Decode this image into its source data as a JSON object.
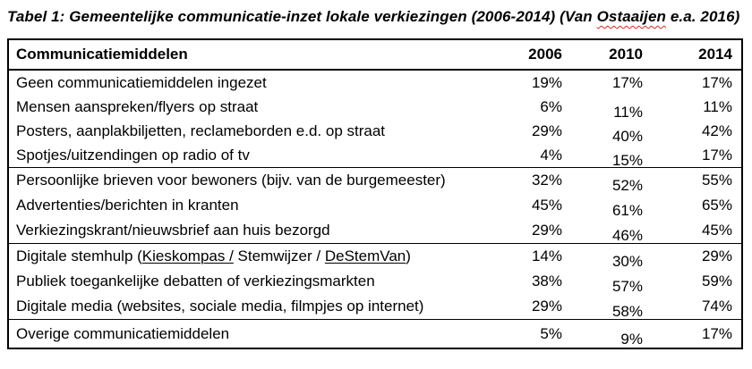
{
  "title": {
    "prefix": "Tabel 1: Gemeentelijke communicatie-inzet lokale verkiezingen (2006-2014) (Van ",
    "spellcheck_word": "Ostaaijen",
    "suffix": " e.a. 2016)"
  },
  "colors": {
    "text": "#000000",
    "border": "#000000",
    "spellcheck_red": "#E0261C",
    "hyperlink_blue": "#2F6FC1"
  },
  "chart_data": {
    "type": "table",
    "title": "Tabel 1: Gemeentelijke communicatie-inzet lokale verkiezingen (2006-2014) (Van Ostaaijen e.a. 2016)",
    "columns": [
      "Communicatiemiddelen",
      "2006",
      "2010",
      "2014"
    ],
    "rows": [
      [
        "Geen communicatiemiddelen ingezet",
        "19%",
        "17%",
        "17%"
      ],
      [
        "Mensen aanspreken/flyers op straat",
        "6%",
        "11%",
        "11%"
      ],
      [
        "Posters, aanplakbiljetten, reclameborden e.d. op straat",
        "29%",
        "40%",
        "42%"
      ],
      [
        "Spotjes/uitzendingen op radio of tv",
        "4%",
        "15%",
        "17%"
      ],
      [
        "Persoonlijke brieven voor bewoners (bijv. van de burgemeester)",
        "32%",
        "52%",
        "55%"
      ],
      [
        "Advertenties/berichten in kranten",
        "45%",
        "61%",
        "65%"
      ],
      [
        "Verkiezingskrant/nieuwsbrief aan huis bezorgd",
        "29%",
        "46%",
        "45%"
      ],
      [
        "Digitale stemhulp (Kieskompas / Stemwijzer / DeStemVan)",
        "14%",
        "30%",
        "29%"
      ],
      [
        "Publiek toegankelijke debatten of verkiezingsmarkten",
        "38%",
        "57%",
        "59%"
      ],
      [
        "Digitale media (websites, sociale media, filmpjes op internet)",
        "29%",
        "58%",
        "74%"
      ],
      [
        "Overige communicatiemiddelen",
        "5%",
        "9%",
        "17%"
      ]
    ]
  },
  "table": {
    "header": {
      "label": "Communicatiemiddelen",
      "years": [
        "2006",
        "2010",
        "2014"
      ]
    },
    "groups": [
      {
        "rows": [
          {
            "label": "Geen communicatiemiddelen ingezet",
            "values": [
              "19%",
              "17%",
              "17%"
            ]
          },
          {
            "label": "Mensen aanspreken/flyers op straat",
            "values": [
              "6%",
              "11%",
              "11%"
            ]
          },
          {
            "label": "Posters, aanplakbiljetten, reclameborden e.d. op straat",
            "values": [
              "29%",
              "40%",
              "42%"
            ]
          },
          {
            "label": "Spotjes/uitzendingen op radio of tv",
            "values": [
              "4%",
              "15%",
              "17%"
            ]
          }
        ]
      },
      {
        "rows": [
          {
            "label": "Persoonlijke brieven voor bewoners (bijv. van de burgemeester)",
            "values": [
              "32%",
              "52%",
              "55%"
            ]
          },
          {
            "label": "Advertenties/berichten in kranten",
            "values": [
              "45%",
              "61%",
              "65%"
            ]
          },
          {
            "label": "Verkiezingskrant/nieuwsbrief aan huis bezorgd",
            "values": [
              "29%",
              "46%",
              "45%"
            ]
          }
        ]
      },
      {
        "rows": [
          {
            "label_parts": {
              "prefix": "Digitale stemhulp (",
              "linked_text": "Kieskompas /",
              "middle": " Stemwijzer / ",
              "flagged_text": "DeStemVan",
              "suffix": ")"
            },
            "values": [
              "14%",
              "30%",
              "29%"
            ]
          },
          {
            "label": "Publiek toegankelijke debatten of verkiezingsmarkten",
            "values": [
              "38%",
              "57%",
              "59%"
            ]
          },
          {
            "label": "Digitale media (websites, sociale media, filmpjes op internet)",
            "values": [
              "29%",
              "58%",
              "74%"
            ]
          }
        ]
      },
      {
        "rows": [
          {
            "label": "Overige communicatiemiddelen",
            "values": [
              "5%",
              "9%",
              "17%"
            ]
          }
        ]
      }
    ]
  }
}
